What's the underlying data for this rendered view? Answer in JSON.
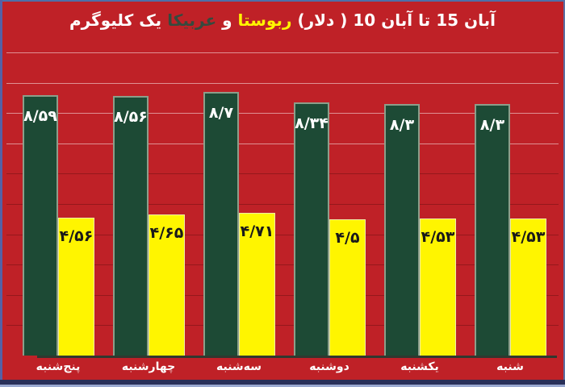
{
  "title": {
    "plain": "یک کلیوگرم عربیکا و ربوستا (دلار ) 10 آبان تا 15 آبان",
    "segments": [
      {
        "text": "یک کلیوگرم",
        "color": "#FFFFFF"
      },
      {
        "text": "عربیکا",
        "color": "#354A3E"
      },
      {
        "text": "و",
        "color": "#FFFFFF"
      },
      {
        "text": "ربوستا",
        "color": "#FFF500"
      },
      {
        "text": "(دلار )",
        "color": "#FFFFFF"
      },
      {
        "text": "10",
        "color": "#FFFFFF"
      },
      {
        "text": "آبان",
        "color": "#FFFFFF"
      },
      {
        "text": "تا",
        "color": "#FFFFFF"
      },
      {
        "text": "15",
        "color": "#FFFFFF"
      },
      {
        "text": "آبان",
        "color": "#FFFFFF"
      }
    ]
  },
  "chart_data": {
    "type": "bar",
    "title": "یک کلیوگرم عربیکا و ربوستا (دلار ) 10 آبان تا 15 آبان",
    "subtitle": "",
    "categories": [
      "پنج‌شنبه",
      "چهارشنبه",
      "سه‌شنبه",
      "دوشنبه",
      "یکشنبه",
      "شنبه"
    ],
    "categories_order": "left-to-right-as-displayed",
    "series": [
      {
        "name": "عربیکا",
        "color": "#1D4A35",
        "values": [
          8.59,
          8.56,
          8.7,
          8.34,
          8.3,
          8.3
        ],
        "value_labels": [
          "۸/۵۹",
          "۸/۵۶",
          "۸/۷",
          "۸/۳۴",
          "۸/۳",
          "۸/۳"
        ],
        "label_color": "#FFFFFF"
      },
      {
        "name": "ربوستا",
        "color": "#FFF500",
        "values": [
          4.56,
          4.65,
          4.71,
          4.5,
          4.53,
          4.53
        ],
        "value_labels": [
          "۴/۵۶",
          "۴/۶۵",
          "۴/۷۱",
          "۴/۵",
          "۴/۵۳",
          "۴/۵۳"
        ],
        "label_color": "#1A1A1A"
      }
    ],
    "xlabel": "",
    "ylabel": "",
    "ylim": [
      0,
      10
    ],
    "grid": true,
    "gridline_interval": 1,
    "legend": "none (series names colored inside title)"
  },
  "colors": {
    "background": "#BF2127",
    "arabica_bar": "#1D4A35",
    "robusta_bar": "#FFF500",
    "grid_light": "rgba(255,255,255,0.5)",
    "grid_dark": "rgba(30,0,0,0.26)",
    "axis_line": "#30382F",
    "border_top": "#4E6FA8",
    "border_bottom_navy": "#293059",
    "border_bottom_light": "#9AA9D0",
    "day_label": "#FFFFFF"
  }
}
